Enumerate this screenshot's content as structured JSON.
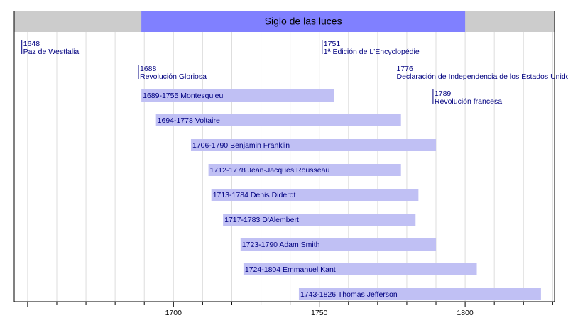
{
  "chart_data": {
    "type": "timeline",
    "x_range": [
      1645,
      1830
    ],
    "x_ticks": [
      1700,
      1750,
      1800
    ],
    "era": {
      "label": "Siglo de las luces",
      "start": 1689,
      "end": 1800
    },
    "events": [
      {
        "year_label": "1648",
        "year": 1648,
        "label": "Paz de Westfalia",
        "row": 0
      },
      {
        "year_label": "1751",
        "year": 1751,
        "label": "1ª Edición de L'Encyclopédie",
        "row": 0
      },
      {
        "year_label": "1688",
        "year": 1688,
        "label": "Revolución Gloriosa",
        "row": 1
      },
      {
        "year_label": "1776",
        "year": 1776,
        "label": "Declaración de Independencia de los Estados Unidos",
        "row": 1
      },
      {
        "year_label": "1789",
        "year": 1789,
        "label": "Revolución francesa",
        "row": 2
      }
    ],
    "lifespans": [
      {
        "label": "1689-1755  Montesquieu",
        "start": 1689,
        "end": 1755
      },
      {
        "label": "1694-1778  Voltaire",
        "start": 1694,
        "end": 1778
      },
      {
        "label": "1706-1790  Benjamin Franklin",
        "start": 1706,
        "end": 1790
      },
      {
        "label": "1712-1778  Jean-Jacques Rousseau",
        "start": 1712,
        "end": 1778
      },
      {
        "label": "1713-1784  Denis Diderot",
        "start": 1713,
        "end": 1784
      },
      {
        "label": "1717-1783  D'Alembert",
        "start": 1717,
        "end": 1783
      },
      {
        "label": "1723-1790  Adam Smith",
        "start": 1723,
        "end": 1790
      },
      {
        "label": "1724-1804  Emmanuel Kant",
        "start": 1724,
        "end": 1804
      },
      {
        "label": "1743-1826  Thomas Jefferson",
        "start": 1743,
        "end": 1826
      }
    ],
    "colors": {
      "era_band": "#cccccc",
      "era_highlight": "#8080ff",
      "lifespan_bar": "#c0c0f4",
      "text": "#000080",
      "grid": "#dddddd",
      "axis": "#000000"
    }
  }
}
